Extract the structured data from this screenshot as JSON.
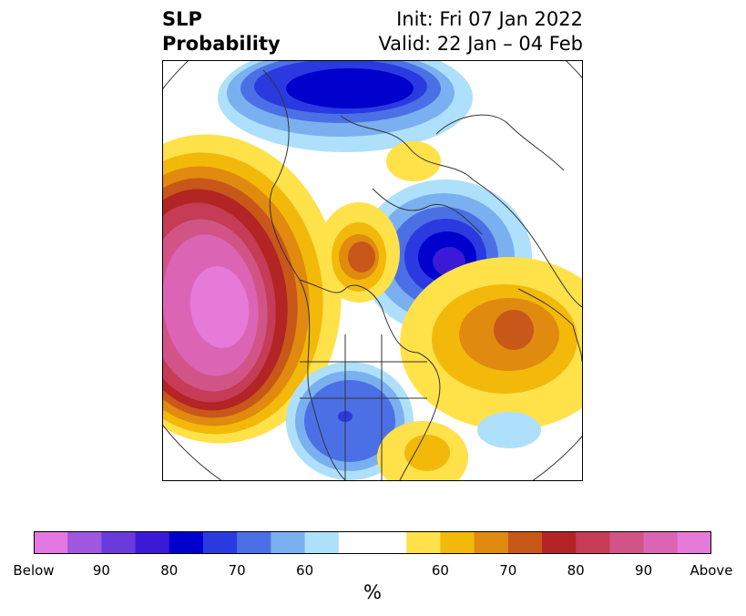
{
  "title": {
    "left_line1": "SLP",
    "left_line2": "Probability",
    "right_line1": "Init: Fri 07 Jan 2022",
    "right_line2": "Valid: 22 Jan – 04 Feb"
  },
  "colorbar": {
    "unit": "%",
    "tick_labels": [
      "Below",
      "90",
      "80",
      "70",
      "60",
      "60",
      "70",
      "80",
      "90",
      "Above"
    ],
    "colors": [
      "#e477e2",
      "#9f57e0",
      "#6b3adb",
      "#3a1ad6",
      "#0000cc",
      "#2a3ae0",
      "#4b70e6",
      "#7ab0f0",
      "#aee0fb",
      "#ffffff",
      "#ffffff",
      "#ffe14a",
      "#f2b90a",
      "#e08a0f",
      "#c8571a",
      "#b32424",
      "#c63b55",
      "#d25486",
      "#db65b4",
      "#e67ad9"
    ]
  },
  "map": {
    "projection": "north-polar-stereographic",
    "region": "Northern Hemisphere"
  }
}
